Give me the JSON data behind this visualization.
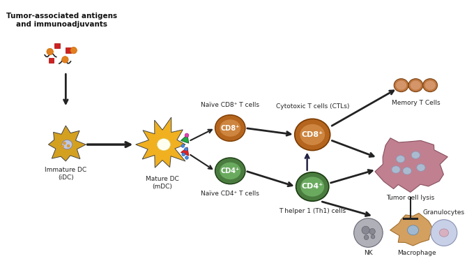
{
  "bg_color": "#ffffff",
  "labels": {
    "idc": "Immature DC\n(iDC)",
    "mdc": "Mature DC\n(mDC)",
    "naive_cd8": "Naïve CD8⁺ T cells",
    "naive_cd4": "Naïve CD4⁺ T cells",
    "ctl": "Cytotoxic T cells (CTLs)",
    "th1": "T helper 1 (Th1) cells",
    "memory": "Memory T Cells",
    "tumor": "Tumor cell lysis",
    "granulocytes": "Granulocytes",
    "nk": "NK",
    "macrophage": "Macrophage",
    "antigens": "Tumor-associated antigens\nand immunoadjuvants"
  },
  "colors": {
    "cd8_brown": "#b5651d",
    "cd8_light": "#cd853f",
    "cd4_green": "#4a7c3f",
    "cd4_light": "#6aaa5f",
    "memory_brown": "#c07840",
    "memory_light": "#d4956a",
    "idc_yellow": "#d4a020",
    "mdc_yellow": "#f0b020",
    "tumor_pink": "#c08090",
    "macro_orange": "#d4a060",
    "macro_blue": "#a0b8d0",
    "antigen_red": "#cc2222",
    "antigen_orange": "#e08020",
    "arrow_color": "#222222"
  },
  "fontsize_label": 6.5,
  "fontsize_cell": 7.0,
  "title_fontsize": 7.5
}
